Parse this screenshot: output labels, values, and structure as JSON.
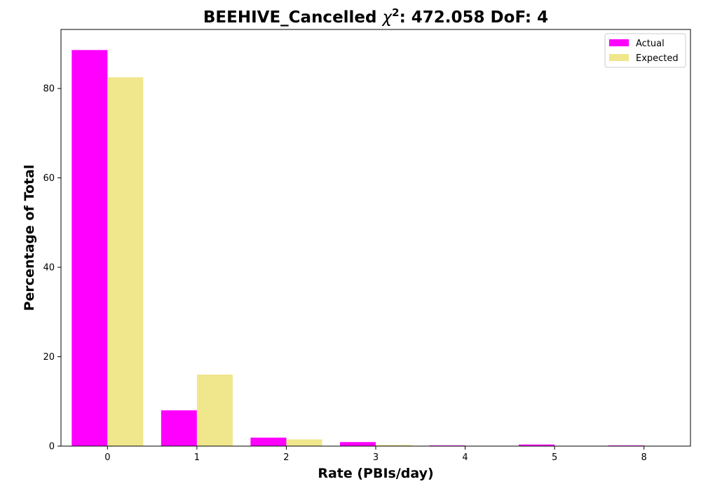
{
  "chart_data": {
    "type": "bar",
    "title_prefix": "BEEHIVE_Cancelled ",
    "title_chi": "χ",
    "title_exp": "2",
    "title_suffix": ": 472.058 DoF: 4",
    "xlabel": "Rate (PBIs/day)",
    "ylabel": "Percentage of Total",
    "categories": [
      "0",
      "1",
      "2",
      "3",
      "4",
      "5",
      "8"
    ],
    "series": [
      {
        "name": "Actual",
        "color": "#ff00ff",
        "values": [
          88.6,
          8.0,
          1.9,
          0.9,
          0.15,
          0.35,
          0.15
        ]
      },
      {
        "name": "Expected",
        "color": "#f0e68c",
        "values": [
          82.5,
          16.0,
          1.5,
          0.25,
          0.0,
          0.0,
          0.0
        ]
      }
    ],
    "ylim": [
      0,
      93.2
    ],
    "yticks": [
      0,
      20,
      40,
      60,
      80
    ],
    "legend_position": "top-right"
  }
}
